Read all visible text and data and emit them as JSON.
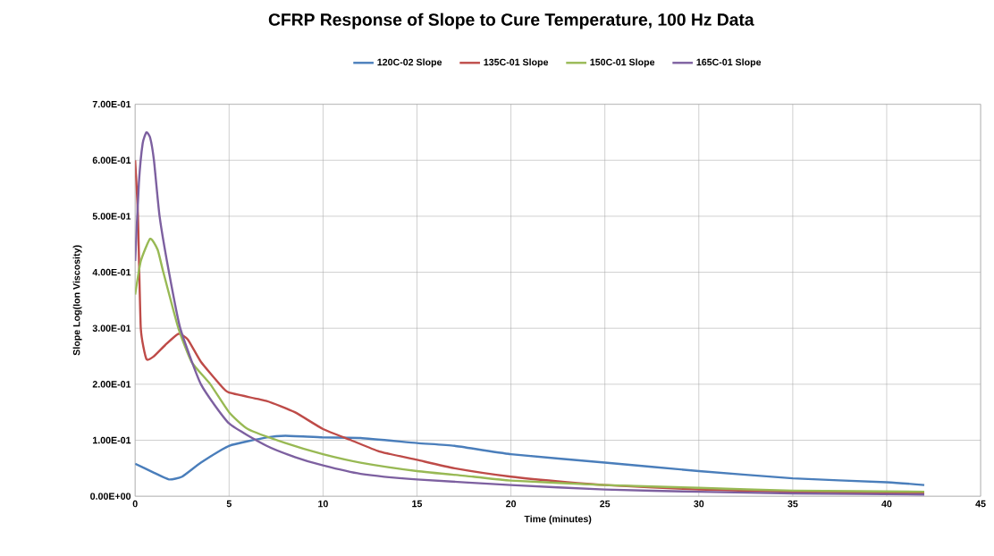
{
  "chart_data": {
    "type": "line",
    "title": "CFRP Response of Slope to Cure Temperature, 100 Hz Data",
    "xlabel": "Time (minutes)",
    "ylabel": "Slope Log(Ion Viscosity)",
    "xlim": [
      0,
      45
    ],
    "xticks": [
      0,
      5,
      10,
      15,
      20,
      25,
      30,
      35,
      40,
      45
    ],
    "ylim": [
      0,
      0.7
    ],
    "yticks": [
      {
        "value": 0,
        "label": "0.00E+00"
      },
      {
        "value": 0.1,
        "label": "1.00E-01"
      },
      {
        "value": 0.2,
        "label": "2.00E-01"
      },
      {
        "value": 0.3,
        "label": "3.00E-01"
      },
      {
        "value": 0.4,
        "label": "4.00E-01"
      },
      {
        "value": 0.5,
        "label": "5.00E-01"
      },
      {
        "value": 0.6,
        "label": "6.00E-01"
      },
      {
        "value": 0.7,
        "label": "7.00E-01"
      }
    ],
    "grid": true,
    "legend": "top",
    "marker": "none",
    "line_style": "solid",
    "series": [
      {
        "name": "120C-02 Slope",
        "color": "#4a7ebb",
        "x": [
          0,
          1,
          1.8,
          2.5,
          3.5,
          5,
          7,
          8,
          10,
          12,
          15,
          17,
          20,
          25,
          30,
          35,
          40,
          42
        ],
        "values": [
          0.058,
          0.042,
          0.03,
          0.035,
          0.06,
          0.09,
          0.105,
          0.108,
          0.105,
          0.104,
          0.095,
          0.09,
          0.075,
          0.06,
          0.045,
          0.032,
          0.025,
          0.02
        ]
      },
      {
        "name": "135C-01 Slope",
        "color": "#be4b48",
        "x": [
          0,
          0.15,
          0.3,
          0.6,
          1.0,
          1.6,
          2.3,
          2.8,
          3.5,
          4.5,
          5,
          7,
          8.5,
          10,
          11.5,
          13,
          15,
          17,
          20,
          23,
          25,
          30,
          35,
          42
        ],
        "values": [
          0.6,
          0.5,
          0.3,
          0.245,
          0.25,
          0.27,
          0.29,
          0.28,
          0.24,
          0.2,
          0.185,
          0.17,
          0.15,
          0.12,
          0.1,
          0.08,
          0.065,
          0.05,
          0.035,
          0.025,
          0.02,
          0.012,
          0.008,
          0.005
        ]
      },
      {
        "name": "150C-01 Slope",
        "color": "#98b954",
        "x": [
          0,
          0.3,
          0.8,
          1.2,
          1.5,
          2.3,
          3,
          4,
          5,
          6,
          8,
          10,
          12,
          15,
          18,
          20,
          25,
          30,
          35,
          42
        ],
        "values": [
          0.36,
          0.42,
          0.46,
          0.44,
          0.4,
          0.3,
          0.24,
          0.2,
          0.15,
          0.12,
          0.095,
          0.075,
          0.06,
          0.045,
          0.035,
          0.028,
          0.02,
          0.015,
          0.01,
          0.008
        ]
      },
      {
        "name": "165C-01 Slope",
        "color": "#7d60a0",
        "x": [
          0,
          0.2,
          0.4,
          0.6,
          0.8,
          1.0,
          1.3,
          1.8,
          2.4,
          3.5,
          5,
          7,
          8.5,
          10,
          12,
          15,
          20,
          25,
          30,
          35,
          42
        ],
        "values": [
          0.42,
          0.56,
          0.63,
          0.65,
          0.64,
          0.6,
          0.5,
          0.4,
          0.3,
          0.2,
          0.13,
          0.09,
          0.07,
          0.055,
          0.04,
          0.03,
          0.02,
          0.012,
          0.008,
          0.005,
          0.003
        ]
      }
    ]
  }
}
